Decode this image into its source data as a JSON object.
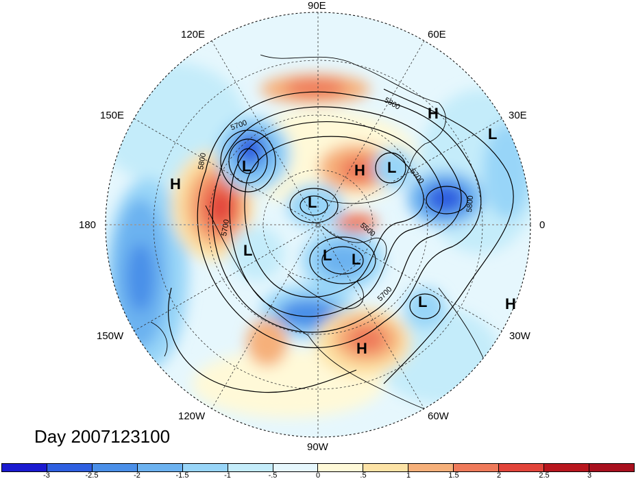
{
  "title": "Day 2007123100",
  "lon_labels": {
    "e90": "90E",
    "e60": "60E",
    "e30": "30E",
    "zero": "0",
    "w30": "30W",
    "w60": "60W",
    "w90": "90W",
    "w120": "120W",
    "w150": "150W",
    "d180": "180",
    "e150": "150E",
    "e120": "120E"
  },
  "pressure_centers": [
    "H",
    "L",
    "H",
    "L",
    "L",
    "L",
    "H",
    "L",
    "L",
    "L",
    "L",
    "H",
    "H"
  ],
  "contour_labels": [
    "5800",
    "5700",
    "5800",
    "5700",
    "5700",
    "5800",
    "5500",
    "5700"
  ],
  "colorbar": {
    "ticks": [
      "-3",
      "-2.5",
      "-2",
      "-1.5",
      "-1",
      "-.5",
      "0",
      ".5",
      "1",
      "1.5",
      "2",
      "2.5",
      "3"
    ],
    "colors": [
      "#1a1ad0",
      "#2e5fe0",
      "#4a8fe8",
      "#6cb2f0",
      "#98d5f8",
      "#c4ecfa",
      "#e6f7fd",
      "#fff9d8",
      "#fde3a6",
      "#f6b07a",
      "#ef7a5a",
      "#e2443a",
      "#b8161e",
      "#a8101e"
    ]
  }
}
